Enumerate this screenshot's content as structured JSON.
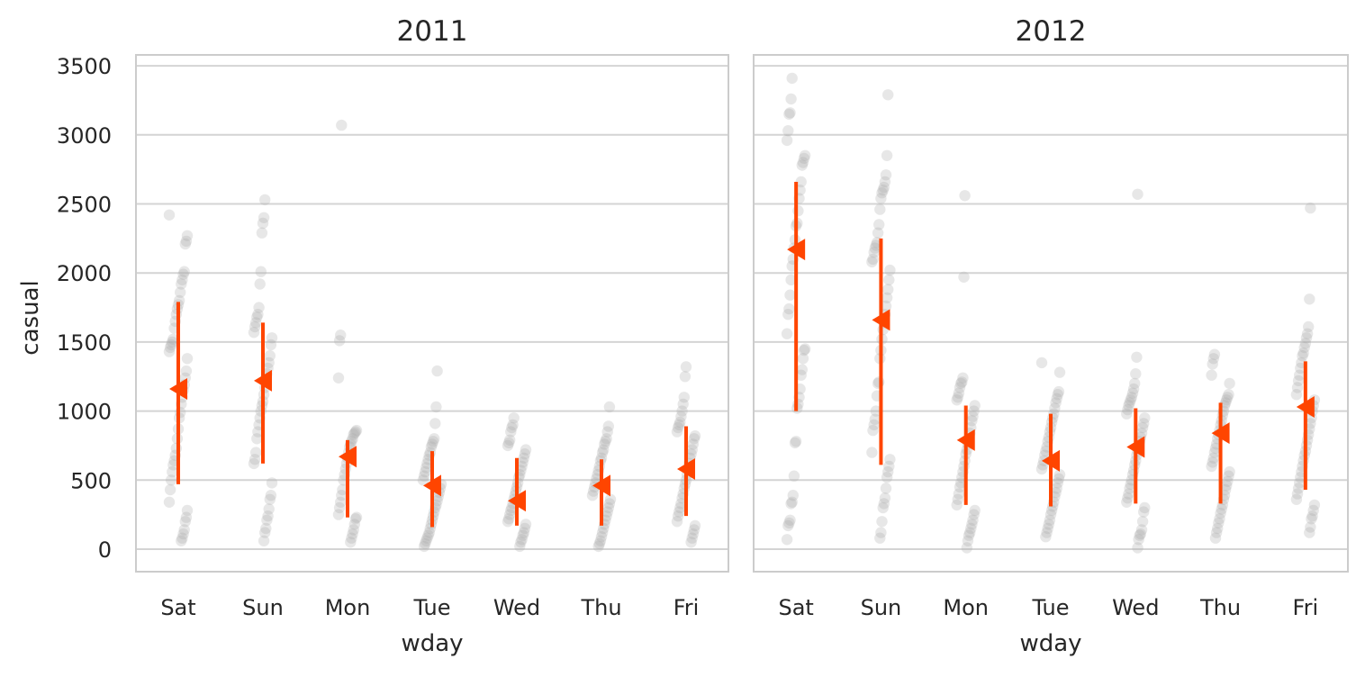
{
  "chart_data": [
    {
      "type": "strip_pointrange",
      "title": "2011",
      "xlabel": "wday",
      "ylabel": "casual",
      "categories": [
        "Sat",
        "Sun",
        "Mon",
        "Tue",
        "Wed",
        "Thu",
        "Fri"
      ],
      "yticks": [
        "0",
        "500",
        "1000",
        "1500",
        "2000",
        "2500",
        "3000",
        "3500"
      ],
      "ylim": [
        -170,
        3600
      ],
      "grid": true,
      "marker": "left-pointing triangle",
      "colors": {
        "points": "#a9a9a9",
        "summary": "#ff4500"
      },
      "summary": [
        {
          "category": "Sat",
          "mean": 1160,
          "low": 470,
          "high": 1790
        },
        {
          "category": "Sun",
          "mean": 1220,
          "low": 620,
          "high": 1640
        },
        {
          "category": "Mon",
          "mean": 670,
          "low": 230,
          "high": 790
        },
        {
          "category": "Tue",
          "mean": 460,
          "low": 160,
          "high": 710
        },
        {
          "category": "Wed",
          "mean": 350,
          "low": 170,
          "high": 660
        },
        {
          "category": "Thu",
          "mean": 460,
          "low": 170,
          "high": 650
        },
        {
          "category": "Fri",
          "mean": 580,
          "low": 240,
          "high": 890
        }
      ],
      "points": [
        [
          2420,
          2270,
          2230,
          2210,
          2010,
          1990,
          1950,
          1920,
          1860,
          1800,
          1770,
          1740,
          1700,
          1650,
          1600,
          1520,
          1500,
          1480,
          1460,
          1430,
          1380,
          1290,
          1240,
          1190,
          1150,
          1100,
          1050,
          990,
          950,
          870,
          800,
          730,
          680,
          640,
          610,
          560,
          500,
          430,
          340,
          280,
          230,
          200,
          140,
          110,
          80,
          60
        ],
        [
          2530,
          2400,
          2360,
          2290,
          2010,
          1920,
          1750,
          1700,
          1680,
          1640,
          1610,
          1570,
          1530,
          1480,
          1400,
          1350,
          1310,
          1270,
          1220,
          1170,
          1120,
          1070,
          1040,
          1000,
          950,
          900,
          850,
          800,
          700,
          650,
          620,
          480,
          390,
          360,
          290,
          240,
          210,
          150,
          120,
          60
        ],
        [
          3070,
          1550,
          1510,
          1240,
          860,
          850,
          840,
          830,
          800,
          780,
          760,
          740,
          700,
          660,
          620,
          580,
          540,
          500,
          430,
          390,
          340,
          300,
          250,
          230,
          220,
          180,
          140,
          110,
          80,
          50
        ],
        [
          1290,
          1030,
          910,
          800,
          780,
          760,
          740,
          700,
          680,
          650,
          620,
          590,
          560,
          530,
          500,
          470,
          440,
          410,
          380,
          350,
          320,
          300,
          270,
          240,
          210,
          180,
          150,
          120,
          100,
          80,
          60,
          40,
          20
        ],
        [
          950,
          900,
          880,
          850,
          790,
          770,
          750,
          720,
          690,
          660,
          630,
          600,
          570,
          540,
          520,
          480,
          450,
          420,
          390,
          360,
          330,
          300,
          280,
          250,
          220,
          200,
          180,
          150,
          120,
          100,
          70,
          50,
          20
        ],
        [
          1030,
          890,
          850,
          800,
          780,
          760,
          720,
          700,
          660,
          640,
          600,
          570,
          540,
          510,
          480,
          450,
          420,
          390,
          360,
          330,
          300,
          270,
          240,
          210,
          180,
          150,
          120,
          90,
          60,
          40,
          20
        ],
        [
          1320,
          1250,
          1100,
          1050,
          1000,
          960,
          920,
          900,
          880,
          850,
          820,
          800,
          760,
          720,
          690,
          660,
          620,
          580,
          540,
          500,
          470,
          440,
          400,
          370,
          330,
          300,
          270,
          240,
          200,
          170,
          140,
          110,
          80,
          50
        ]
      ]
    },
    {
      "type": "strip_pointrange",
      "title": "2012",
      "xlabel": "wday",
      "ylabel": "",
      "categories": [
        "Sat",
        "Sun",
        "Mon",
        "Tue",
        "Wed",
        "Thu",
        "Fri"
      ],
      "yticks": [
        "0",
        "500",
        "1000",
        "1500",
        "2000",
        "2500",
        "3000",
        "3500"
      ],
      "ylim": [
        -170,
        3600
      ],
      "grid": true,
      "marker": "left-pointing triangle",
      "colors": {
        "points": "#a9a9a9",
        "summary": "#ff4500"
      },
      "summary": [
        {
          "category": "Sat",
          "mean": 2170,
          "low": 1000,
          "high": 2660
        },
        {
          "category": "Sun",
          "mean": 1660,
          "low": 610,
          "high": 2250
        },
        {
          "category": "Mon",
          "mean": 790,
          "low": 320,
          "high": 1040
        },
        {
          "category": "Tue",
          "mean": 640,
          "low": 310,
          "high": 980
        },
        {
          "category": "Wed",
          "mean": 740,
          "low": 330,
          "high": 1020
        },
        {
          "category": "Thu",
          "mean": 840,
          "low": 330,
          "high": 1060
        },
        {
          "category": "Fri",
          "mean": 1030,
          "low": 430,
          "high": 1360
        }
      ],
      "points": [
        [
          3410,
          3260,
          3160,
          3150,
          3030,
          2960,
          2850,
          2830,
          2800,
          2780,
          2660,
          2600,
          2540,
          2450,
          2360,
          2340,
          2240,
          2180,
          2100,
          2050,
          1950,
          1840,
          1740,
          1700,
          1560,
          1450,
          1440,
          1380,
          1300,
          1260,
          1160,
          1100,
          1050,
          1020,
          780,
          770,
          530,
          390,
          340,
          330,
          210,
          190,
          170,
          70
        ],
        [
          3290,
          2850,
          2710,
          2660,
          2620,
          2600,
          2580,
          2540,
          2460,
          2350,
          2290,
          2220,
          2200,
          2180,
          2150,
          2100,
          2080,
          2020,
          1950,
          1880,
          1820,
          1760,
          1700,
          1640,
          1590,
          1520,
          1440,
          1380,
          1210,
          1200,
          1110,
          1000,
          940,
          900,
          860,
          700,
          650,
          600,
          560,
          520,
          440,
          370,
          330,
          300,
          200,
          120,
          80
        ],
        [
          2560,
          1970,
          1240,
          1210,
          1200,
          1170,
          1130,
          1100,
          1080,
          1040,
          1000,
          960,
          930,
          880,
          840,
          800,
          760,
          720,
          690,
          640,
          600,
          560,
          520,
          480,
          450,
          400,
          360,
          320,
          280,
          250,
          210,
          180,
          150,
          120,
          100,
          60,
          10
        ],
        [
          1350,
          1280,
          1140,
          1120,
          1090,
          1060,
          1020,
          980,
          950,
          920,
          880,
          850,
          810,
          780,
          740,
          710,
          680,
          640,
          610,
          580,
          540,
          510,
          480,
          440,
          410,
          380,
          340,
          310,
          280,
          250,
          210,
          180,
          150,
          120,
          90
        ],
        [
          2570,
          1390,
          1270,
          1200,
          1160,
          1130,
          1100,
          1080,
          1060,
          1040,
          1010,
          980,
          950,
          910,
          880,
          840,
          810,
          780,
          740,
          710,
          680,
          640,
          610,
          570,
          540,
          500,
          470,
          440,
          400,
          370,
          340,
          300,
          270,
          200,
          140,
          110,
          100,
          70,
          10
        ],
        [
          1410,
          1380,
          1340,
          1260,
          1200,
          1120,
          1100,
          1080,
          1060,
          1040,
          1000,
          970,
          930,
          900,
          860,
          830,
          800,
          760,
          730,
          700,
          660,
          630,
          600,
          560,
          530,
          490,
          460,
          430,
          390,
          360,
          320,
          290,
          260,
          220,
          190,
          150,
          120,
          80
        ],
        [
          2470,
          1810,
          1610,
          1560,
          1530,
          1490,
          1460,
          1420,
          1400,
          1350,
          1310,
          1260,
          1220,
          1170,
          1120,
          1080,
          1040,
          1000,
          950,
          910,
          870,
          830,
          790,
          750,
          710,
          680,
          640,
          600,
          560,
          520,
          480,
          440,
          400,
          360,
          320,
          280,
          240,
          220,
          160,
          120
        ]
      ]
    }
  ]
}
